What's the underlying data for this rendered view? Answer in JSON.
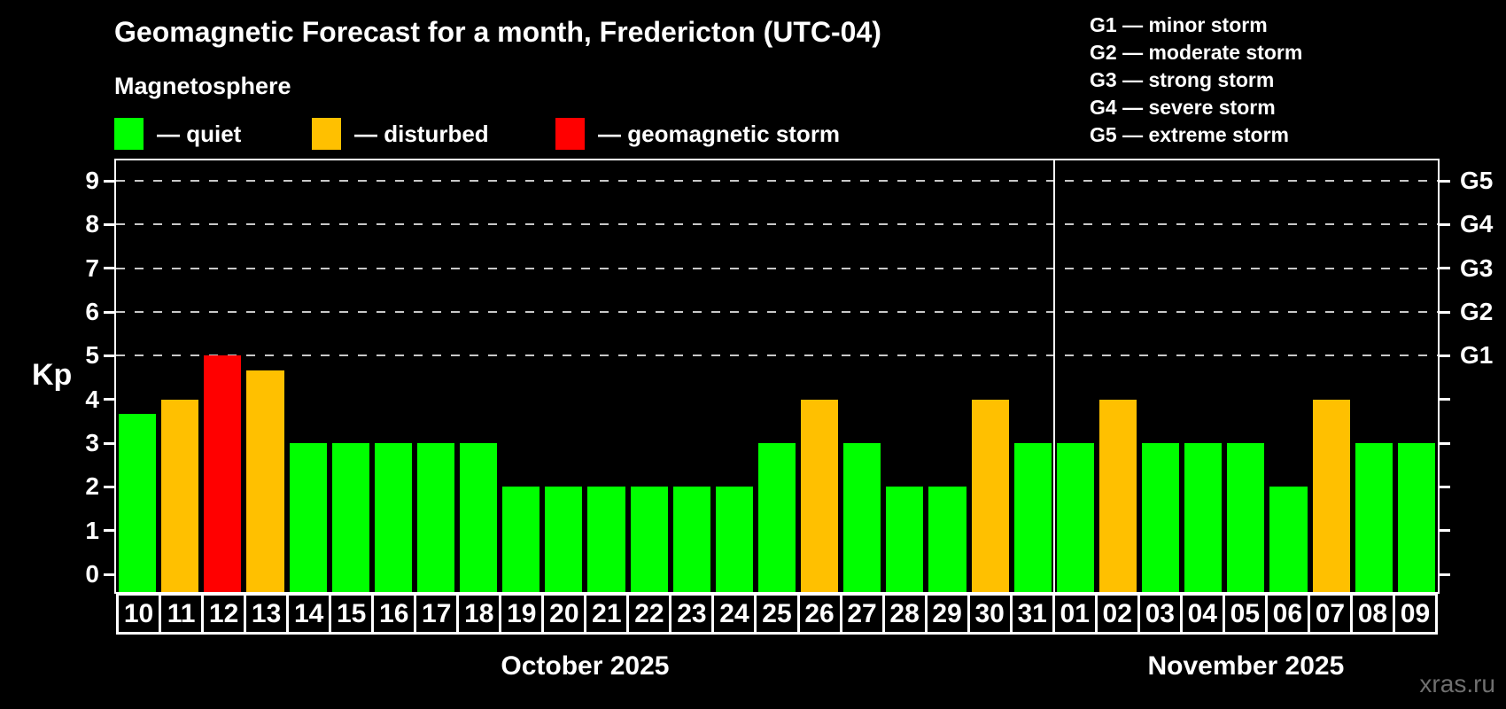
{
  "header": {
    "title": "Geomagnetic Forecast for a month, Fredericton (UTC-04)",
    "subtitle": "Magnetosphere"
  },
  "legend": {
    "items": [
      {
        "name": "quiet",
        "label": "— quiet",
        "color": "#00ff00"
      },
      {
        "name": "disturbed",
        "label": "— disturbed",
        "color": "#ffc000"
      },
      {
        "name": "storm",
        "label": "— geomagnetic storm",
        "color": "#ff0000"
      }
    ]
  },
  "storm_legend": {
    "lines": [
      "G1 — minor storm",
      "G2 — moderate storm",
      "G3 — strong storm",
      "G4 — severe storm",
      "G5 — extreme storm"
    ]
  },
  "watermark": "xras.ru",
  "chart_data": {
    "type": "bar",
    "title": "Geomagnetic Forecast for a month, Fredericton (UTC-04)",
    "ylabel": "Kp",
    "ylim": [
      0,
      9
    ],
    "yticks": [
      0,
      1,
      2,
      3,
      4,
      5,
      6,
      7,
      8,
      9
    ],
    "gridlines_at": [
      5,
      6,
      7,
      8,
      9
    ],
    "grid": "dashed horizontal at storm levels only",
    "legend_position": "top",
    "right_axis_labels": [
      {
        "value": 5,
        "label": "G1"
      },
      {
        "value": 6,
        "label": "G2"
      },
      {
        "value": 7,
        "label": "G3"
      },
      {
        "value": 8,
        "label": "G4"
      },
      {
        "value": 9,
        "label": "G5"
      }
    ],
    "status_colors": {
      "quiet": "#00ff00",
      "disturbed": "#ffc000",
      "storm": "#ff0000"
    },
    "months": [
      {
        "label": "October 2025",
        "days": [
          {
            "day": "10",
            "value": 3.67,
            "status": "quiet"
          },
          {
            "day": "11",
            "value": 4,
            "status": "disturbed"
          },
          {
            "day": "12",
            "value": 5,
            "status": "storm"
          },
          {
            "day": "13",
            "value": 4.67,
            "status": "disturbed"
          },
          {
            "day": "14",
            "value": 3,
            "status": "quiet"
          },
          {
            "day": "15",
            "value": 3,
            "status": "quiet"
          },
          {
            "day": "16",
            "value": 3,
            "status": "quiet"
          },
          {
            "day": "17",
            "value": 3,
            "status": "quiet"
          },
          {
            "day": "18",
            "value": 3,
            "status": "quiet"
          },
          {
            "day": "19",
            "value": 2,
            "status": "quiet"
          },
          {
            "day": "20",
            "value": 2,
            "status": "quiet"
          },
          {
            "day": "21",
            "value": 2,
            "status": "quiet"
          },
          {
            "day": "22",
            "value": 2,
            "status": "quiet"
          },
          {
            "day": "23",
            "value": 2,
            "status": "quiet"
          },
          {
            "day": "24",
            "value": 2,
            "status": "quiet"
          },
          {
            "day": "25",
            "value": 3,
            "status": "quiet"
          },
          {
            "day": "26",
            "value": 4,
            "status": "disturbed"
          },
          {
            "day": "27",
            "value": 3,
            "status": "quiet"
          },
          {
            "day": "28",
            "value": 2,
            "status": "quiet"
          },
          {
            "day": "29",
            "value": 2,
            "status": "quiet"
          },
          {
            "day": "30",
            "value": 4,
            "status": "disturbed"
          },
          {
            "day": "31",
            "value": 3,
            "status": "quiet"
          }
        ]
      },
      {
        "label": "November 2025",
        "days": [
          {
            "day": "01",
            "value": 3,
            "status": "quiet"
          },
          {
            "day": "02",
            "value": 4,
            "status": "disturbed"
          },
          {
            "day": "03",
            "value": 3,
            "status": "quiet"
          },
          {
            "day": "04",
            "value": 3,
            "status": "quiet"
          },
          {
            "day": "05",
            "value": 3,
            "status": "quiet"
          },
          {
            "day": "06",
            "value": 2,
            "status": "quiet"
          },
          {
            "day": "07",
            "value": 4,
            "status": "disturbed"
          },
          {
            "day": "08",
            "value": 3,
            "status": "quiet"
          },
          {
            "day": "09",
            "value": 3,
            "status": "quiet"
          }
        ]
      }
    ]
  }
}
